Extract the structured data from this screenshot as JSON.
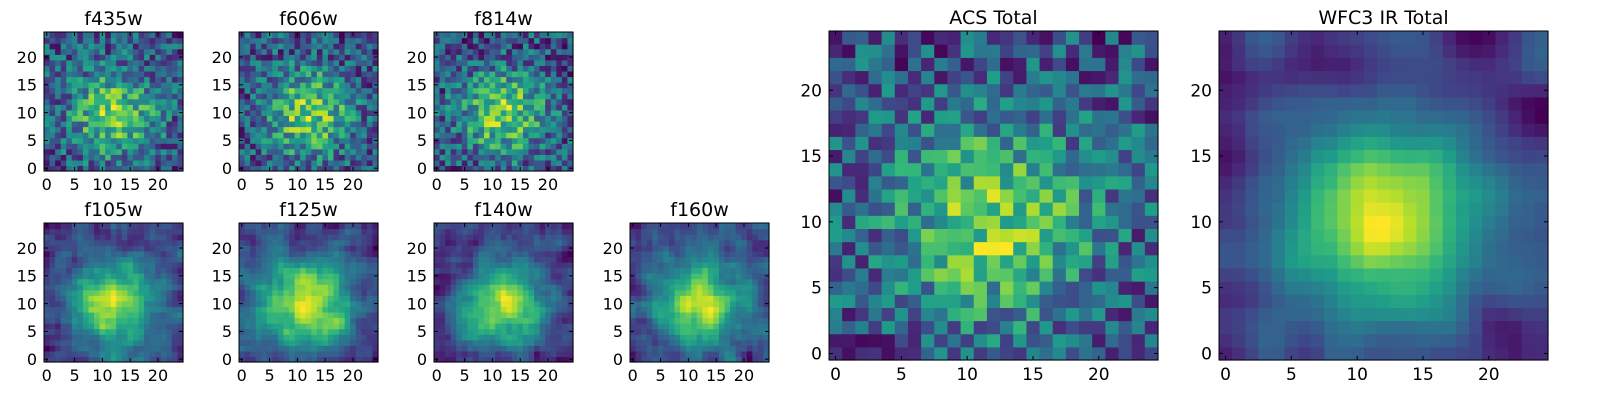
{
  "figure": {
    "background": "#ffffff"
  },
  "chart_data": [
    {
      "id": "f435w",
      "type": "heatmap",
      "title": "f435w",
      "grid_size": 25,
      "x_ticks": [
        0,
        5,
        10,
        15,
        20
      ],
      "y_ticks": [
        0,
        5,
        10,
        15,
        20
      ],
      "xlim": [
        0,
        25
      ],
      "ylim": [
        0,
        25
      ],
      "seed": 11,
      "smooth": 0,
      "grid": false,
      "colormap": "viridis"
    },
    {
      "id": "f606w",
      "type": "heatmap",
      "title": "f606w",
      "grid_size": 25,
      "x_ticks": [
        0,
        5,
        10,
        15,
        20
      ],
      "y_ticks": [
        0,
        5,
        10,
        15,
        20
      ],
      "xlim": [
        0,
        25
      ],
      "ylim": [
        0,
        25
      ],
      "seed": 23,
      "smooth": 0,
      "grid": false,
      "colormap": "viridis"
    },
    {
      "id": "f814w",
      "type": "heatmap",
      "title": "f814w",
      "grid_size": 25,
      "x_ticks": [
        0,
        5,
        10,
        15,
        20
      ],
      "y_ticks": [
        0,
        5,
        10,
        15,
        20
      ],
      "xlim": [
        0,
        25
      ],
      "ylim": [
        0,
        25
      ],
      "seed": 37,
      "smooth": 0,
      "grid": false,
      "colormap": "viridis"
    },
    {
      "id": "f105w",
      "type": "heatmap",
      "title": "f105w",
      "grid_size": 25,
      "x_ticks": [
        0,
        5,
        10,
        15,
        20
      ],
      "y_ticks": [
        0,
        5,
        10,
        15,
        20
      ],
      "xlim": [
        0,
        25
      ],
      "ylim": [
        0,
        25
      ],
      "seed": 41,
      "smooth": 1,
      "grid": false,
      "colormap": "viridis"
    },
    {
      "id": "f125w",
      "type": "heatmap",
      "title": "f125w",
      "grid_size": 25,
      "x_ticks": [
        0,
        5,
        10,
        15,
        20
      ],
      "y_ticks": [
        0,
        5,
        10,
        15,
        20
      ],
      "xlim": [
        0,
        25
      ],
      "ylim": [
        0,
        25
      ],
      "seed": 53,
      "smooth": 1,
      "grid": false,
      "colormap": "viridis"
    },
    {
      "id": "f140w",
      "type": "heatmap",
      "title": "f140w",
      "grid_size": 25,
      "x_ticks": [
        0,
        5,
        10,
        15,
        20
      ],
      "y_ticks": [
        0,
        5,
        10,
        15,
        20
      ],
      "xlim": [
        0,
        25
      ],
      "ylim": [
        0,
        25
      ],
      "seed": 67,
      "smooth": 1,
      "grid": false,
      "colormap": "viridis"
    },
    {
      "id": "f160w",
      "type": "heatmap",
      "title": "f160w",
      "grid_size": 25,
      "x_ticks": [
        0,
        5,
        10,
        15,
        20
      ],
      "y_ticks": [
        0,
        5,
        10,
        15,
        20
      ],
      "xlim": [
        0,
        25
      ],
      "ylim": [
        0,
        25
      ],
      "seed": 79,
      "smooth": 1,
      "grid": false,
      "colormap": "viridis"
    },
    {
      "id": "acs",
      "type": "heatmap",
      "title": "ACS Total",
      "grid_size": 25,
      "x_ticks": [
        0,
        5,
        10,
        15,
        20
      ],
      "y_ticks": [
        0,
        5,
        10,
        15,
        20
      ],
      "xlim": [
        0,
        25
      ],
      "ylim": [
        0,
        25
      ],
      "seed": 97,
      "smooth": 0,
      "grid": false,
      "colormap": "viridis"
    },
    {
      "id": "wfc3",
      "type": "heatmap",
      "title": "WFC3 IR Total",
      "grid_size": 25,
      "x_ticks": [
        0,
        5,
        10,
        15,
        20
      ],
      "y_ticks": [
        0,
        5,
        10,
        15,
        20
      ],
      "xlim": [
        0,
        25
      ],
      "ylim": [
        0,
        25
      ],
      "seed": 113,
      "smooth": 2,
      "grid": false,
      "colormap": "viridis"
    }
  ]
}
